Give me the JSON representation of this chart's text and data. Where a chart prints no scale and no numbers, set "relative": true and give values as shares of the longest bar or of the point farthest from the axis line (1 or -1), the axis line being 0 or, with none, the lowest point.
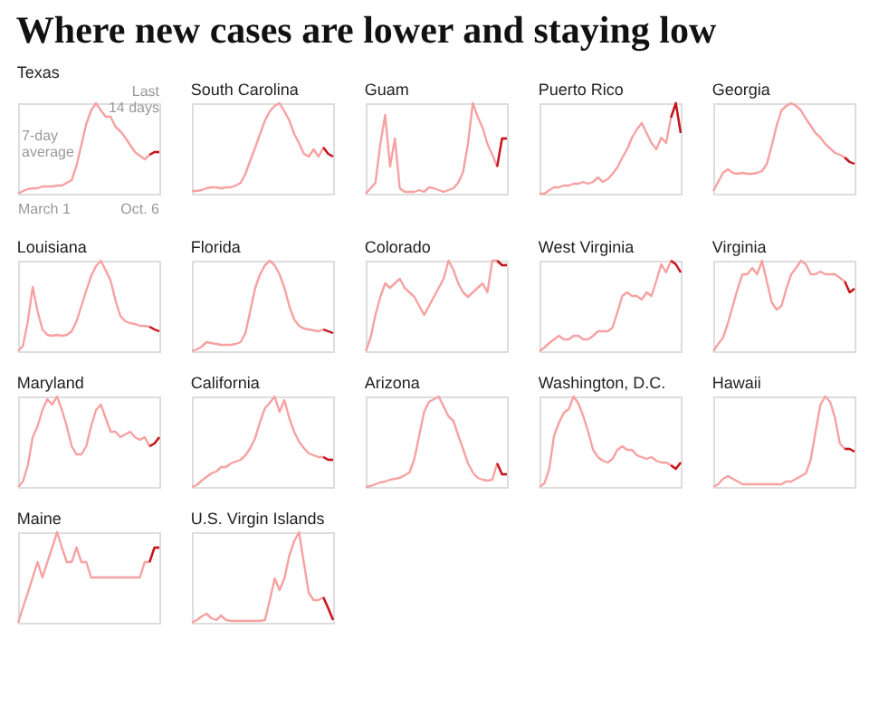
{
  "chart_data": [
    {
      "type": "other",
      "title": "Where new cases are lower and staying low"
    },
    {
      "type": "line",
      "title": "Texas",
      "relative": true,
      "annotations": [
        "7-day average",
        "Last 14 days",
        "March 1",
        "Oct. 6"
      ],
      "categories": [
        null,
        null,
        null,
        null,
        null,
        null,
        null,
        null,
        null,
        null,
        null,
        null,
        null,
        null,
        null,
        null,
        null,
        null,
        null,
        null,
        null,
        null,
        null,
        null,
        null,
        null,
        null,
        null,
        null,
        null
      ],
      "series": [
        {
          "color": "#f7a1a1",
          "values": [
            0,
            0.03,
            0.05,
            0.06,
            0.06,
            0.08,
            0.08,
            0.08,
            0.09,
            0.09,
            0.12,
            0.15,
            0.31,
            0.54,
            0.77,
            0.92,
            1,
            0.92,
            0.85,
            0.85,
            0.74,
            0.69,
            0.62,
            0.54,
            0.46,
            0.42,
            0.38,
            0.43,
            0.46,
            0.46
          ]
        },
        {
          "color": "#c4161c",
          "values": [
            null,
            null,
            null,
            null,
            null,
            null,
            null,
            null,
            null,
            null,
            null,
            null,
            null,
            null,
            null,
            null,
            null,
            null,
            null,
            null,
            null,
            null,
            null,
            null,
            null,
            null,
            null,
            0.43,
            0.46,
            0.46
          ]
        }
      ]
    },
    {
      "type": "line",
      "title": "South Carolina",
      "relative": true,
      "categories": [
        null,
        null,
        null,
        null,
        null,
        null,
        null,
        null,
        null,
        null,
        null,
        null,
        null,
        null,
        null,
        null,
        null,
        null,
        null,
        null,
        null,
        null,
        null,
        null,
        null,
        null,
        null,
        null,
        null,
        null
      ],
      "series": [
        {
          "color": "#f7a1a1",
          "values": [
            0.03,
            0.03,
            0.04,
            0.06,
            0.07,
            0.07,
            0.06,
            0.07,
            0.07,
            0.09,
            0.12,
            0.22,
            0.37,
            0.51,
            0.66,
            0.81,
            0.91,
            0.97,
            1,
            0.91,
            0.81,
            0.66,
            0.56,
            0.44,
            0.41,
            0.49,
            0.41,
            0.51,
            0.44,
            0.41
          ]
        },
        {
          "color": "#c4161c",
          "values": [
            null,
            null,
            null,
            null,
            null,
            null,
            null,
            null,
            null,
            null,
            null,
            null,
            null,
            null,
            null,
            null,
            null,
            null,
            null,
            null,
            null,
            null,
            null,
            null,
            null,
            null,
            null,
            0.51,
            0.44,
            0.41
          ]
        }
      ]
    },
    {
      "type": "line",
      "title": "Guam",
      "relative": true,
      "categories": [
        null,
        null,
        null,
        null,
        null,
        null,
        null,
        null,
        null,
        null,
        null,
        null,
        null,
        null,
        null,
        null,
        null,
        null,
        null,
        null,
        null,
        null,
        null,
        null,
        null,
        null,
        null,
        null,
        null,
        null
      ],
      "series": [
        {
          "color": "#f7a1a1",
          "values": [
            0,
            0.06,
            0.12,
            0.55,
            0.87,
            0.3,
            0.61,
            0.06,
            0.02,
            0.02,
            0.02,
            0.04,
            0.02,
            0.07,
            0.06,
            0.04,
            0.02,
            0.04,
            0.06,
            0.12,
            0.24,
            0.55,
            1,
            0.85,
            0.73,
            0.55,
            0.43,
            0.3,
            0.61,
            0.61
          ]
        },
        {
          "color": "#c4161c",
          "values": [
            null,
            null,
            null,
            null,
            null,
            null,
            null,
            null,
            null,
            null,
            null,
            null,
            null,
            null,
            null,
            null,
            null,
            null,
            null,
            null,
            null,
            null,
            null,
            null,
            null,
            null,
            null,
            0.3,
            0.61,
            0.61
          ]
        }
      ]
    },
    {
      "type": "line",
      "title": "Puerto Rico",
      "relative": true,
      "categories": [
        null,
        null,
        null,
        null,
        null,
        null,
        null,
        null,
        null,
        null,
        null,
        null,
        null,
        null,
        null,
        null,
        null,
        null,
        null,
        null,
        null,
        null,
        null,
        null,
        null,
        null,
        null,
        null,
        null,
        null
      ],
      "series": [
        {
          "color": "#f7a1a1",
          "values": [
            0,
            0,
            0.04,
            0.07,
            0.07,
            0.09,
            0.09,
            0.11,
            0.11,
            0.13,
            0.11,
            0.13,
            0.18,
            0.13,
            0.16,
            0.22,
            0.29,
            0.4,
            0.49,
            0.62,
            0.71,
            0.78,
            0.67,
            0.56,
            0.49,
            0.62,
            0.56,
            0.84,
            1,
            0.67
          ]
        },
        {
          "color": "#c4161c",
          "values": [
            null,
            null,
            null,
            null,
            null,
            null,
            null,
            null,
            null,
            null,
            null,
            null,
            null,
            null,
            null,
            null,
            null,
            null,
            null,
            null,
            null,
            null,
            null,
            null,
            null,
            null,
            null,
            0.84,
            1,
            0.67
          ]
        }
      ]
    },
    {
      "type": "line",
      "title": "Georgia",
      "relative": true,
      "categories": [
        null,
        null,
        null,
        null,
        null,
        null,
        null,
        null,
        null,
        null,
        null,
        null,
        null,
        null,
        null,
        null,
        null,
        null,
        null,
        null,
        null,
        null,
        null,
        null,
        null,
        null,
        null,
        null,
        null,
        null
      ],
      "series": [
        {
          "color": "#f7a1a1",
          "values": [
            0.03,
            0.13,
            0.23,
            0.27,
            0.23,
            0.22,
            0.23,
            0.22,
            0.22,
            0.23,
            0.25,
            0.33,
            0.53,
            0.75,
            0.92,
            0.97,
            1,
            0.97,
            0.92,
            0.83,
            0.75,
            0.67,
            0.62,
            0.55,
            0.5,
            0.45,
            0.43,
            0.4,
            0.35,
            0.33
          ]
        },
        {
          "color": "#c4161c",
          "values": [
            null,
            null,
            null,
            null,
            null,
            null,
            null,
            null,
            null,
            null,
            null,
            null,
            null,
            null,
            null,
            null,
            null,
            null,
            null,
            null,
            null,
            null,
            null,
            null,
            null,
            null,
            null,
            0.4,
            0.35,
            0.33
          ]
        }
      ]
    },
    {
      "type": "line",
      "title": "Louisiana",
      "relative": true,
      "categories": [
        null,
        null,
        null,
        null,
        null,
        null,
        null,
        null,
        null,
        null,
        null,
        null,
        null,
        null,
        null,
        null,
        null,
        null,
        null,
        null,
        null,
        null,
        null,
        null,
        null,
        null,
        null,
        null,
        null,
        null
      ],
      "series": [
        {
          "color": "#f7a1a1",
          "values": [
            0,
            0.06,
            0.33,
            0.71,
            0.44,
            0.24,
            0.18,
            0.17,
            0.18,
            0.17,
            0.18,
            0.22,
            0.33,
            0.5,
            0.67,
            0.83,
            0.94,
            1,
            0.89,
            0.78,
            0.56,
            0.39,
            0.33,
            0.31,
            0.3,
            0.28,
            0.28,
            0.27,
            0.24,
            0.22
          ]
        },
        {
          "color": "#c4161c",
          "values": [
            null,
            null,
            null,
            null,
            null,
            null,
            null,
            null,
            null,
            null,
            null,
            null,
            null,
            null,
            null,
            null,
            null,
            null,
            null,
            null,
            null,
            null,
            null,
            null,
            null,
            null,
            null,
            0.27,
            0.24,
            0.22
          ]
        }
      ]
    },
    {
      "type": "line",
      "title": "Florida",
      "relative": true,
      "categories": [
        null,
        null,
        null,
        null,
        null,
        null,
        null,
        null,
        null,
        null,
        null,
        null,
        null,
        null,
        null,
        null,
        null,
        null,
        null,
        null,
        null,
        null,
        null,
        null,
        null,
        null,
        null,
        null,
        null,
        null
      ],
      "series": [
        {
          "color": "#f7a1a1",
          "values": [
            0,
            0.02,
            0.05,
            0.1,
            0.09,
            0.08,
            0.07,
            0.07,
            0.07,
            0.08,
            0.1,
            0.2,
            0.45,
            0.7,
            0.85,
            0.95,
            1,
            0.95,
            0.85,
            0.7,
            0.5,
            0.35,
            0.28,
            0.25,
            0.24,
            0.23,
            0.22,
            0.24,
            0.22,
            0.2
          ]
        },
        {
          "color": "#c4161c",
          "values": [
            null,
            null,
            null,
            null,
            null,
            null,
            null,
            null,
            null,
            null,
            null,
            null,
            null,
            null,
            null,
            null,
            null,
            null,
            null,
            null,
            null,
            null,
            null,
            null,
            null,
            null,
            null,
            0.24,
            0.22,
            0.2
          ]
        }
      ]
    },
    {
      "type": "line",
      "title": "Colorado",
      "relative": true,
      "categories": [
        null,
        null,
        null,
        null,
        null,
        null,
        null,
        null,
        null,
        null,
        null,
        null,
        null,
        null,
        null,
        null,
        null,
        null,
        null,
        null,
        null,
        null,
        null,
        null,
        null,
        null,
        null,
        null,
        null,
        null
      ],
      "series": [
        {
          "color": "#f7a1a1",
          "values": [
            0,
            0.15,
            0.4,
            0.6,
            0.75,
            0.7,
            0.75,
            0.8,
            0.7,
            0.65,
            0.6,
            0.5,
            0.4,
            0.5,
            0.6,
            0.7,
            0.8,
            1,
            0.9,
            0.75,
            0.65,
            0.6,
            0.65,
            0.7,
            0.75,
            0.65,
            1,
            1,
            0.95,
            0.95
          ]
        },
        {
          "color": "#c4161c",
          "values": [
            null,
            null,
            null,
            null,
            null,
            null,
            null,
            null,
            null,
            null,
            null,
            null,
            null,
            null,
            null,
            null,
            null,
            null,
            null,
            null,
            null,
            null,
            null,
            null,
            null,
            null,
            null,
            1,
            0.95,
            0.95
          ]
        }
      ]
    },
    {
      "type": "line",
      "title": "West Virginia",
      "relative": true,
      "categories": [
        null,
        null,
        null,
        null,
        null,
        null,
        null,
        null,
        null,
        null,
        null,
        null,
        null,
        null,
        null,
        null,
        null,
        null,
        null,
        null,
        null,
        null,
        null,
        null,
        null,
        null,
        null,
        null,
        null,
        null
      ],
      "series": [
        {
          "color": "#f7a1a1",
          "values": [
            0,
            0.04,
            0.09,
            0.13,
            0.17,
            0.13,
            0.13,
            0.17,
            0.17,
            0.13,
            0.13,
            0.17,
            0.22,
            0.22,
            0.22,
            0.26,
            0.43,
            0.61,
            0.65,
            0.61,
            0.61,
            0.57,
            0.65,
            0.61,
            0.78,
            0.96,
            0.87,
            1,
            0.96,
            0.87
          ]
        },
        {
          "color": "#c4161c",
          "values": [
            null,
            null,
            null,
            null,
            null,
            null,
            null,
            null,
            null,
            null,
            null,
            null,
            null,
            null,
            null,
            null,
            null,
            null,
            null,
            null,
            null,
            null,
            null,
            null,
            null,
            null,
            null,
            1,
            0.96,
            0.87
          ]
        }
      ]
    },
    {
      "type": "line",
      "title": "Virginia",
      "relative": true,
      "categories": [
        null,
        null,
        null,
        null,
        null,
        null,
        null,
        null,
        null,
        null,
        null,
        null,
        null,
        null,
        null,
        null,
        null,
        null,
        null,
        null,
        null,
        null,
        null,
        null,
        null,
        null,
        null,
        null,
        null,
        null
      ],
      "series": [
        {
          "color": "#f7a1a1",
          "values": [
            0,
            0.08,
            0.15,
            0.31,
            0.5,
            0.69,
            0.85,
            0.85,
            0.92,
            0.85,
            1,
            0.77,
            0.54,
            0.46,
            0.5,
            0.69,
            0.85,
            0.92,
            1,
            0.96,
            0.85,
            0.85,
            0.88,
            0.85,
            0.85,
            0.85,
            0.81,
            0.77,
            0.65,
            0.69
          ]
        },
        {
          "color": "#c4161c",
          "values": [
            null,
            null,
            null,
            null,
            null,
            null,
            null,
            null,
            null,
            null,
            null,
            null,
            null,
            null,
            null,
            null,
            null,
            null,
            null,
            null,
            null,
            null,
            null,
            null,
            null,
            null,
            null,
            0.77,
            0.65,
            0.69
          ]
        }
      ]
    },
    {
      "type": "line",
      "title": "Maryland",
      "relative": true,
      "categories": [
        null,
        null,
        null,
        null,
        null,
        null,
        null,
        null,
        null,
        null,
        null,
        null,
        null,
        null,
        null,
        null,
        null,
        null,
        null,
        null,
        null,
        null,
        null,
        null,
        null,
        null,
        null,
        null,
        null,
        null
      ],
      "series": [
        {
          "color": "#f7a1a1",
          "values": [
            0,
            0.06,
            0.24,
            0.55,
            0.67,
            0.85,
            0.97,
            0.91,
            1,
            0.85,
            0.67,
            0.45,
            0.36,
            0.36,
            0.45,
            0.67,
            0.85,
            0.91,
            0.76,
            0.61,
            0.61,
            0.55,
            0.58,
            0.61,
            0.55,
            0.52,
            0.55,
            0.45,
            0.48,
            0.55
          ]
        },
        {
          "color": "#c4161c",
          "values": [
            null,
            null,
            null,
            null,
            null,
            null,
            null,
            null,
            null,
            null,
            null,
            null,
            null,
            null,
            null,
            null,
            null,
            null,
            null,
            null,
            null,
            null,
            null,
            null,
            null,
            null,
            null,
            0.45,
            0.48,
            0.55
          ]
        }
      ]
    },
    {
      "type": "line",
      "title": "California",
      "relative": true,
      "categories": [
        null,
        null,
        null,
        null,
        null,
        null,
        null,
        null,
        null,
        null,
        null,
        null,
        null,
        null,
        null,
        null,
        null,
        null,
        null,
        null,
        null,
        null,
        null,
        null,
        null,
        null,
        null,
        null,
        null,
        null
      ],
      "series": [
        {
          "color": "#f7a1a1",
          "values": [
            0,
            0.02,
            0.07,
            0.11,
            0.15,
            0.17,
            0.22,
            0.22,
            0.26,
            0.28,
            0.3,
            0.35,
            0.43,
            0.54,
            0.72,
            0.87,
            0.93,
            1,
            0.83,
            0.96,
            0.76,
            0.61,
            0.5,
            0.43,
            0.37,
            0.35,
            0.33,
            0.33,
            0.3,
            0.3
          ]
        },
        {
          "color": "#c4161c",
          "values": [
            null,
            null,
            null,
            null,
            null,
            null,
            null,
            null,
            null,
            null,
            null,
            null,
            null,
            null,
            null,
            null,
            null,
            null,
            null,
            null,
            null,
            null,
            null,
            null,
            null,
            null,
            null,
            0.33,
            0.3,
            0.3
          ]
        }
      ]
    },
    {
      "type": "line",
      "title": "Arizona",
      "relative": true,
      "categories": [
        null,
        null,
        null,
        null,
        null,
        null,
        null,
        null,
        null,
        null,
        null,
        null,
        null,
        null,
        null,
        null,
        null,
        null,
        null,
        null,
        null,
        null,
        null,
        null,
        null,
        null,
        null,
        null,
        null,
        null
      ],
      "series": [
        {
          "color": "#f7a1a1",
          "values": [
            0,
            0.01,
            0.03,
            0.05,
            0.06,
            0.08,
            0.09,
            0.1,
            0.13,
            0.16,
            0.31,
            0.57,
            0.83,
            0.94,
            0.97,
            1,
            0.89,
            0.78,
            0.73,
            0.57,
            0.42,
            0.26,
            0.16,
            0.1,
            0.08,
            0.07,
            0.08,
            0.26,
            0.14,
            0.14
          ]
        },
        {
          "color": "#c4161c",
          "values": [
            null,
            null,
            null,
            null,
            null,
            null,
            null,
            null,
            null,
            null,
            null,
            null,
            null,
            null,
            null,
            null,
            null,
            null,
            null,
            null,
            null,
            null,
            null,
            null,
            null,
            null,
            null,
            0.26,
            0.14,
            0.14
          ]
        }
      ]
    },
    {
      "type": "line",
      "title": "Washington, D.C.",
      "relative": true,
      "categories": [
        null,
        null,
        null,
        null,
        null,
        null,
        null,
        null,
        null,
        null,
        null,
        null,
        null,
        null,
        null,
        null,
        null,
        null,
        null,
        null,
        null,
        null,
        null,
        null,
        null,
        null,
        null,
        null,
        null,
        null
      ],
      "series": [
        {
          "color": "#f7a1a1",
          "values": [
            0,
            0.04,
            0.2,
            0.57,
            0.71,
            0.82,
            0.86,
            1,
            0.92,
            0.78,
            0.61,
            0.41,
            0.33,
            0.29,
            0.27,
            0.31,
            0.41,
            0.45,
            0.41,
            0.41,
            0.35,
            0.33,
            0.31,
            0.33,
            0.29,
            0.27,
            0.27,
            0.24,
            0.2,
            0.27
          ]
        },
        {
          "color": "#c4161c",
          "values": [
            null,
            null,
            null,
            null,
            null,
            null,
            null,
            null,
            null,
            null,
            null,
            null,
            null,
            null,
            null,
            null,
            null,
            null,
            null,
            null,
            null,
            null,
            null,
            null,
            null,
            null,
            null,
            0.24,
            0.2,
            0.27
          ]
        }
      ]
    },
    {
      "type": "line",
      "title": "Hawaii",
      "relative": true,
      "categories": [
        null,
        null,
        null,
        null,
        null,
        null,
        null,
        null,
        null,
        null,
        null,
        null,
        null,
        null,
        null,
        null,
        null,
        null,
        null,
        null,
        null,
        null,
        null,
        null,
        null,
        null,
        null,
        null,
        null,
        null
      ],
      "series": [
        {
          "color": "#f7a1a1",
          "values": [
            0,
            0.03,
            0.09,
            0.12,
            0.09,
            0.06,
            0.03,
            0.03,
            0.03,
            0.03,
            0.03,
            0.03,
            0.03,
            0.03,
            0.03,
            0.06,
            0.06,
            0.09,
            0.12,
            0.15,
            0.3,
            0.61,
            0.91,
            1,
            0.94,
            0.76,
            0.48,
            0.42,
            0.42,
            0.39
          ]
        },
        {
          "color": "#c4161c",
          "values": [
            null,
            null,
            null,
            null,
            null,
            null,
            null,
            null,
            null,
            null,
            null,
            null,
            null,
            null,
            null,
            null,
            null,
            null,
            null,
            null,
            null,
            null,
            null,
            null,
            null,
            null,
            null,
            0.42,
            0.42,
            0.39
          ]
        }
      ]
    },
    {
      "type": "line",
      "title": "Maine",
      "relative": true,
      "categories": [
        null,
        null,
        null,
        null,
        null,
        null,
        null,
        null,
        null,
        null,
        null,
        null,
        null,
        null,
        null,
        null,
        null,
        null,
        null,
        null,
        null,
        null,
        null,
        null,
        null,
        null,
        null,
        null,
        null,
        null
      ],
      "series": [
        {
          "color": "#f7a1a1",
          "values": [
            0,
            0.17,
            0.33,
            0.5,
            0.67,
            0.5,
            0.67,
            0.83,
            1,
            0.83,
            0.67,
            0.67,
            0.83,
            0.67,
            0.67,
            0.5,
            0.5,
            0.5,
            0.5,
            0.5,
            0.5,
            0.5,
            0.5,
            0.5,
            0.5,
            0.5,
            0.67,
            0.67,
            0.83,
            0.83
          ]
        },
        {
          "color": "#c4161c",
          "values": [
            null,
            null,
            null,
            null,
            null,
            null,
            null,
            null,
            null,
            null,
            null,
            null,
            null,
            null,
            null,
            null,
            null,
            null,
            null,
            null,
            null,
            null,
            null,
            null,
            null,
            null,
            null,
            0.67,
            0.83,
            0.83
          ]
        }
      ]
    },
    {
      "type": "line",
      "title": "U.S. Virgin Islands",
      "relative": true,
      "categories": [
        null,
        null,
        null,
        null,
        null,
        null,
        null,
        null,
        null,
        null,
        null,
        null,
        null,
        null,
        null,
        null,
        null,
        null,
        null,
        null,
        null,
        null,
        null,
        null,
        null,
        null,
        null,
        null,
        null,
        null
      ],
      "series": [
        {
          "color": "#f7a1a1",
          "values": [
            0,
            0.03,
            0.07,
            0.1,
            0.05,
            0.03,
            0.08,
            0.03,
            0.02,
            0.02,
            0.02,
            0.02,
            0.02,
            0.02,
            0.02,
            0.03,
            0.25,
            0.49,
            0.36,
            0.49,
            0.74,
            0.9,
            1,
            0.66,
            0.33,
            0.25,
            0.25,
            0.28,
            0.16,
            0.03
          ]
        },
        {
          "color": "#c4161c",
          "values": [
            null,
            null,
            null,
            null,
            null,
            null,
            null,
            null,
            null,
            null,
            null,
            null,
            null,
            null,
            null,
            null,
            null,
            null,
            null,
            null,
            null,
            null,
            null,
            null,
            null,
            null,
            null,
            0.28,
            0.16,
            0.03
          ]
        }
      ]
    }
  ]
}
